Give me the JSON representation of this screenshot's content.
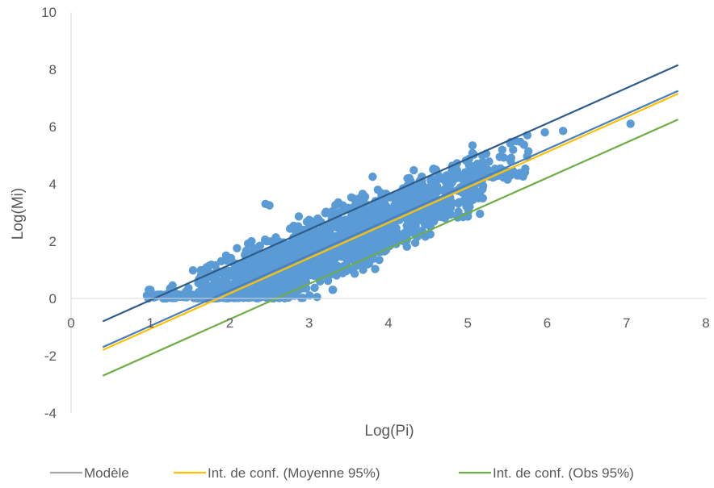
{
  "chart_data": {
    "type": "scatter",
    "xlabel": "Log(Pi)",
    "ylabel": "Log(Mi)",
    "xlim": [
      0,
      8
    ],
    "ylim": [
      -4,
      10
    ],
    "xticks": [
      0,
      1,
      2,
      3,
      4,
      5,
      6,
      7,
      8
    ],
    "yticks": [
      -4,
      -2,
      0,
      2,
      4,
      6,
      8,
      10
    ],
    "grid": false,
    "legend_position": "bottom",
    "series": [
      {
        "kind": "points",
        "color": "#5b9bd5",
        "point_cloud": [
          {
            "x_range": [
              0.95,
              2.0
            ],
            "y_range": [
              0.0,
              1.0
            ],
            "count": 120
          },
          {
            "x_range": [
              1.6,
              3.0
            ],
            "y_range": [
              0.0,
              2.0
            ],
            "count": 650
          },
          {
            "x_range": [
              2.2,
              3.3
            ],
            "y_range": [
              0.0,
              2.8
            ],
            "count": 300
          },
          {
            "x_range": [
              2.8,
              4.0
            ],
            "y_range": [
              0.8,
              3.8
            ],
            "count": 550
          },
          {
            "x_range": [
              3.3,
              4.6
            ],
            "y_range": [
              1.8,
              4.6
            ],
            "count": 400
          },
          {
            "x_range": [
              4.0,
              5.2
            ],
            "y_range": [
              2.8,
              5.3
            ],
            "count": 220
          },
          {
            "x_range": [
              4.8,
              5.8
            ],
            "y_range": [
              4.2,
              5.6
            ],
            "count": 90
          }
        ],
        "outliers": [
          {
            "x": 7.05,
            "y": 6.1
          },
          {
            "x": 6.2,
            "y": 5.85
          },
          {
            "x": 5.97,
            "y": 5.8
          },
          {
            "x": 5.75,
            "y": 5.7
          },
          {
            "x": 5.72,
            "y": 4.4
          },
          {
            "x": 5.5,
            "y": 4.15
          },
          {
            "x": 2.45,
            "y": 3.3
          },
          {
            "x": 2.5,
            "y": 3.25
          },
          {
            "x": 3.8,
            "y": 4.25
          },
          {
            "x": 3.68,
            "y": 1.0
          },
          {
            "x": 4.8,
            "y": 4.05
          },
          {
            "x": 1.0,
            "y": 0.3
          },
          {
            "x": 0.98,
            "y": 0.3
          },
          {
            "x": 3.3,
            "y": 0.3
          },
          {
            "x": 3.1,
            "y": 0.05
          },
          {
            "x": 3.8,
            "y": 1.45
          }
        ]
      },
      {
        "name": "Modèle",
        "kind": "line",
        "color": "#2e5c8a",
        "x": [
          0.4,
          7.65
        ],
        "y": [
          -0.8,
          8.15
        ]
      },
      {
        "name": "",
        "kind": "line",
        "color": "#4a7ebf",
        "x": [
          0.4,
          7.65
        ],
        "y": [
          -1.7,
          7.25
        ]
      },
      {
        "name": "Int. de conf. (Moyenne 95%)",
        "kind": "line",
        "color": "#ffc000",
        "x": [
          0.4,
          7.65
        ],
        "y": [
          -1.8,
          7.15
        ]
      },
      {
        "name": "Int. de conf. (Obs 95%)",
        "kind": "line",
        "color": "#70ad47",
        "x": [
          0.4,
          7.65
        ],
        "y": [
          -2.7,
          6.25
        ]
      }
    ],
    "legend": [
      {
        "label": "Modèle",
        "color": "#a6a6a6"
      },
      {
        "label": "Int. de conf. (Moyenne 95%)",
        "color": "#ffc000"
      },
      {
        "label": "Int. de conf. (Obs 95%)",
        "color": "#70ad47"
      }
    ]
  }
}
